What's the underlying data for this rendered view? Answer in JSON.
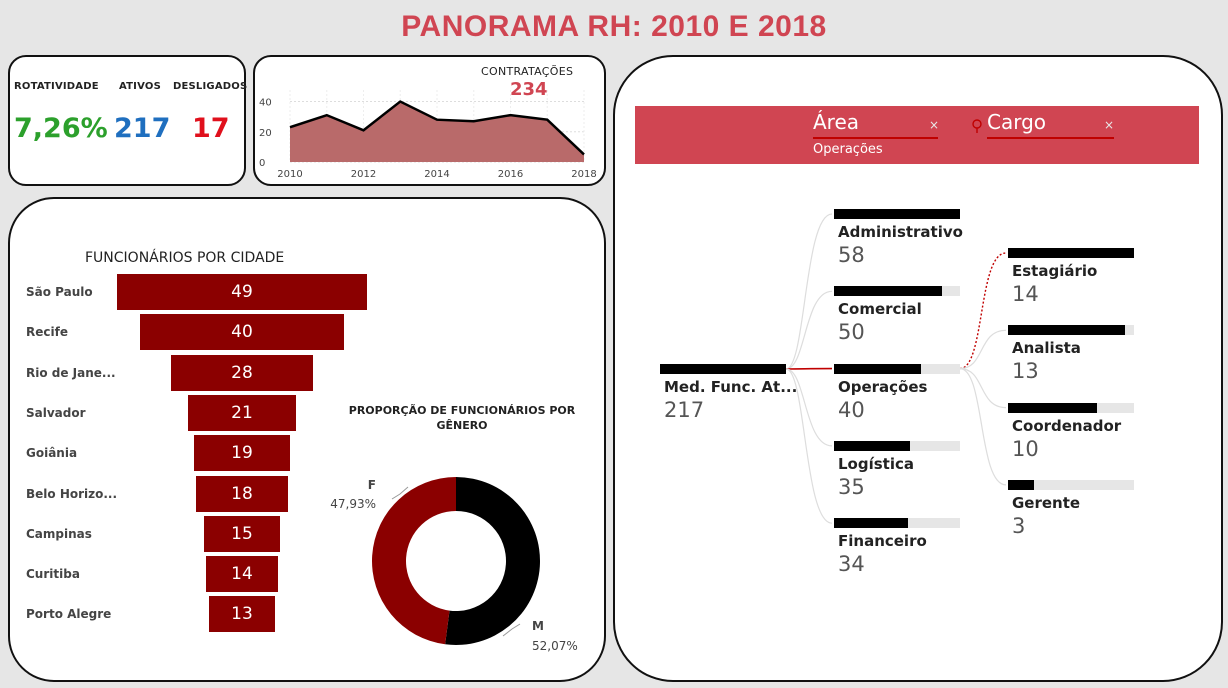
{
  "title": "PANORAMA RH: 2010 E 2018",
  "colors": {
    "title": "#d04552",
    "green": "#2ca02c",
    "blue": "#1f6fbf",
    "red": "#e0101c",
    "darkred": "#8b0000",
    "slicer": "#d04552"
  },
  "kpis": {
    "rotatividade": {
      "label": "ROTATIVIDADE",
      "value": "7,26%"
    },
    "ativos": {
      "label": "ATIVOS",
      "value": "217"
    },
    "desligados": {
      "label": "DESLIGADOS",
      "value": "17"
    }
  },
  "contratacoes": {
    "title": "CONTRATAÇÕES",
    "total": "234",
    "chart_data": {
      "type": "area",
      "x": [
        2010,
        2011,
        2012,
        2013,
        2014,
        2015,
        2016,
        2017,
        2018
      ],
      "values": [
        23,
        31,
        21,
        40,
        28,
        27,
        31,
        28,
        5
      ],
      "xticks": [
        "2010",
        "2012",
        "2014",
        "2016",
        "2018"
      ],
      "yticks": [
        "40",
        "20",
        "0"
      ],
      "ylim": [
        0,
        45
      ]
    }
  },
  "cidades": {
    "title": "FUNCIONÁRIOS POR CIDADE",
    "chart_data": {
      "type": "bar",
      "categories": [
        "São Paulo",
        "Recife",
        "Rio de Jane...",
        "Salvador",
        "Goiânia",
        "Belo Horizo...",
        "Campinas",
        "Curitiba",
        "Porto Alegre"
      ],
      "values": [
        49,
        40,
        28,
        21,
        19,
        18,
        15,
        14,
        13
      ],
      "value_labels": [
        "49",
        "40",
        "28",
        "21",
        "19",
        "18",
        "15",
        "14",
        "13"
      ]
    }
  },
  "genero": {
    "title_line1": "PROPORÇÃO DE FUNCIONÁRIOS POR",
    "title_line2": "GÊNERO",
    "chart_data": {
      "type": "pie",
      "categories": [
        "M",
        "F"
      ],
      "values": [
        52.07,
        47.93
      ],
      "value_labels": [
        "52,07%",
        "47,93%"
      ],
      "colors": [
        "#000000",
        "#8b0000"
      ]
    }
  },
  "slicer": {
    "area_label": "Área",
    "area_selected": "Operações",
    "cargo_label": "Cargo",
    "close_symbol": "×"
  },
  "tree": {
    "root": {
      "label": "Med. Func. At...",
      "value": "217",
      "fill": 1.0
    },
    "areas": [
      {
        "label": "Administrativo",
        "value": "58",
        "fill": 1.0
      },
      {
        "label": "Comercial",
        "value": "50",
        "fill": 0.86
      },
      {
        "label": "Operações",
        "value": "40",
        "fill": 0.69,
        "selected": true
      },
      {
        "label": "Logística",
        "value": "35",
        "fill": 0.6
      },
      {
        "label": "Financeiro",
        "value": "34",
        "fill": 0.59
      }
    ],
    "cargos": [
      {
        "label": "Estagiário",
        "value": "14",
        "fill": 1.0
      },
      {
        "label": "Analista",
        "value": "13",
        "fill": 0.93
      },
      {
        "label": "Coordenador",
        "value": "10",
        "fill": 0.71
      },
      {
        "label": "Gerente",
        "value": "3",
        "fill": 0.21
      }
    ]
  }
}
